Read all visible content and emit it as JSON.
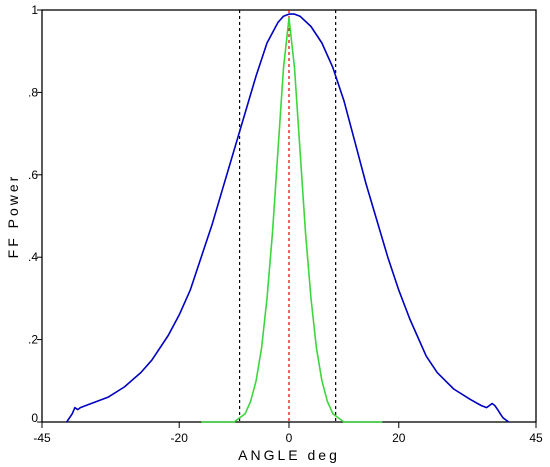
{
  "chart_data": {
    "type": "line",
    "title": "",
    "xlabel": "ANGLE deg",
    "ylabel": "FF Power",
    "xlim": [
      -45,
      45
    ],
    "ylim": [
      0,
      1
    ],
    "x_ticks": [
      -45,
      -20,
      0,
      20,
      45
    ],
    "x_tick_labels": [
      "-45",
      "-20",
      "0",
      "20",
      "45"
    ],
    "y_ticks": [
      0,
      0.2,
      0.4,
      0.6,
      0.8,
      1
    ],
    "y_tick_labels": [
      "0",
      ".2",
      ".4",
      ".6",
      ".8",
      "1"
    ],
    "grid": false,
    "legend": "none",
    "series": [
      {
        "color": "#0000c0",
        "style": "solid",
        "x": [
          -40.5,
          -39.5,
          -39,
          -38.5,
          -38,
          -37,
          -35,
          -33,
          -30,
          -27,
          -25,
          -22,
          -20,
          -18,
          -16,
          -14,
          -12,
          -10,
          -8,
          -6,
          -4,
          -2,
          -1,
          0,
          1,
          2,
          4,
          6,
          8,
          10,
          12,
          14,
          16,
          18,
          20,
          22,
          25,
          27,
          30,
          33,
          35,
          36,
          37,
          37.5,
          38,
          38.5,
          39,
          40
        ],
        "y": [
          0.0,
          0.02,
          0.035,
          0.03,
          0.035,
          0.04,
          0.05,
          0.06,
          0.085,
          0.12,
          0.15,
          0.21,
          0.26,
          0.32,
          0.4,
          0.48,
          0.57,
          0.66,
          0.75,
          0.84,
          0.92,
          0.97,
          0.985,
          0.99,
          0.99,
          0.985,
          0.96,
          0.92,
          0.86,
          0.78,
          0.68,
          0.58,
          0.49,
          0.4,
          0.32,
          0.25,
          0.16,
          0.12,
          0.08,
          0.055,
          0.04,
          0.035,
          0.045,
          0.04,
          0.03,
          0.02,
          0.01,
          0.0
        ]
      },
      {
        "color": "#3dd63d",
        "style": "solid",
        "x": [
          -16,
          -10,
          -9,
          -8,
          -7,
          -6,
          -5,
          -4,
          -3,
          -2,
          -1,
          0,
          1,
          2,
          3,
          4,
          5,
          6,
          7,
          8,
          9,
          10,
          17
        ],
        "y": [
          0.0,
          0.0,
          0.01,
          0.02,
          0.05,
          0.1,
          0.18,
          0.3,
          0.46,
          0.66,
          0.86,
          0.98,
          0.86,
          0.66,
          0.46,
          0.3,
          0.18,
          0.1,
          0.05,
          0.02,
          0.01,
          0.0,
          0.0
        ]
      }
    ],
    "vertical_lines": [
      {
        "x": -9,
        "color": "#000000",
        "style": "dashed"
      },
      {
        "x": 0,
        "color": "#e00000",
        "style": "dashed"
      },
      {
        "x": 8.5,
        "color": "#000000",
        "style": "dashed"
      }
    ]
  }
}
